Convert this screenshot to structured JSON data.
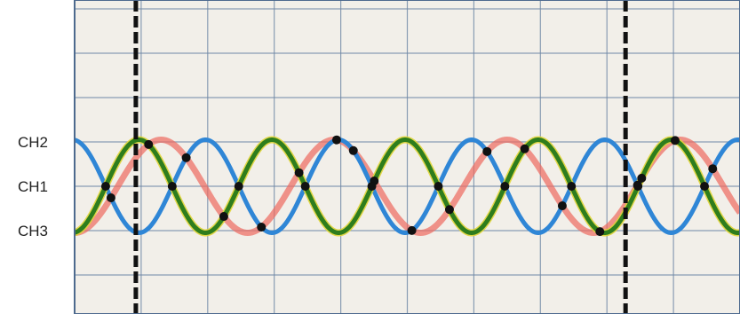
{
  "header_text": "",
  "channel_labels": [
    {
      "name": "CH2",
      "level_div": 4.0
    },
    {
      "name": "CH1",
      "level_div": 3.0
    },
    {
      "name": "CH3",
      "level_div": 2.0
    }
  ],
  "colors": {
    "background": "#f2efe9",
    "grid": "#6f88a6",
    "frame": "#4d6a8e",
    "ch_red": "#ee6a5e",
    "ch_blue": "#2f86d6",
    "ch_green": "#2e7d1d",
    "ch_green_edge": "#e0d436",
    "cursor": "#111111",
    "crossing_dot": "#111111"
  },
  "chart_data": {
    "type": "line",
    "title": "",
    "xlabel": "",
    "ylabel": "",
    "xlim": [
      0,
      10
    ],
    "ylim": [
      0,
      7
    ],
    "grid": true,
    "legend": "left",
    "series": [
      {
        "color_key": "ch_red",
        "amplitude": 1.05,
        "offset": 3.0,
        "period": 2.6,
        "phase_deg": -90,
        "width": 7
      },
      {
        "color_key": "ch_blue",
        "amplitude": 1.05,
        "offset": 3.0,
        "period": 2.0,
        "phase_deg": 96,
        "width": 5
      },
      {
        "color_key": "ch_green",
        "amplitude": 1.05,
        "offset": 3.0,
        "period": 2.0,
        "phase_deg": -84,
        "width": 5
      }
    ],
    "cursors_x": [
      0.92,
      8.28
    ]
  }
}
